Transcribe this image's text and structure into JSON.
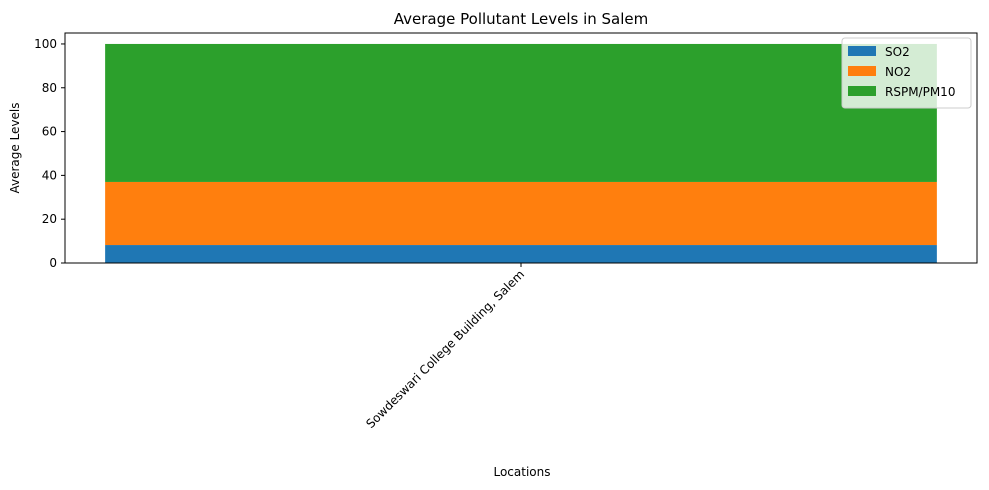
{
  "chart_data": {
    "type": "bar",
    "stacked": true,
    "title": "Average Pollutant Levels in Salem",
    "xlabel": "Locations",
    "ylabel": "Average Levels",
    "categories": [
      "Sowdeswari College Building, Salem"
    ],
    "series": [
      {
        "name": "SO2",
        "values": [
          8.2
        ],
        "color": "#1f77b4"
      },
      {
        "name": "NO2",
        "values": [
          28.8
        ],
        "color": "#ff7f0e"
      },
      {
        "name": "RSPM/PM10",
        "values": [
          63.0
        ],
        "color": "#2ca02c"
      }
    ],
    "ylim": [
      0,
      105
    ],
    "yticks": [
      0,
      20,
      40,
      60,
      80,
      100
    ],
    "grid": false,
    "legend_position": "top-right",
    "xtick_rotation": 45
  }
}
